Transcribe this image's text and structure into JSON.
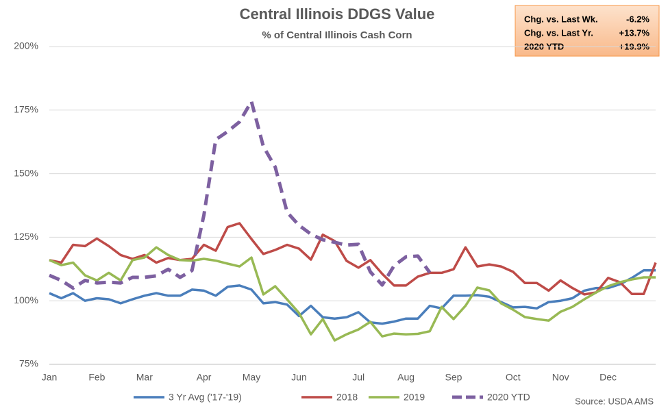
{
  "chart_data": {
    "type": "line",
    "title": "Central Illinois DDGS Value",
    "subtitle": "% of Central Illinois Cash Corn",
    "source": "Source: USDA AMS",
    "info_box": [
      [
        "Chg. vs. Last Wk.",
        "-6.2%"
      ],
      [
        "Chg. vs. Last Yr.",
        "+13.7%"
      ],
      [
        "2020 YTD",
        "+19.9%"
      ]
    ],
    "categories": [
      "Jan",
      null,
      null,
      null,
      "Feb",
      null,
      null,
      null,
      "Mar",
      null,
      null,
      null,
      null,
      "Apr",
      null,
      null,
      null,
      "May",
      null,
      null,
      null,
      "Jun",
      null,
      null,
      null,
      null,
      "Jul",
      null,
      null,
      null,
      "Aug",
      null,
      null,
      null,
      "Sep",
      null,
      null,
      null,
      null,
      "Oct",
      null,
      null,
      null,
      "Nov",
      null,
      null,
      null,
      "Dec",
      null,
      null,
      null,
      null
    ],
    "ylim": [
      75,
      200
    ],
    "yticks": [
      {
        "value": 75,
        "label": "75%"
      },
      {
        "value": 100,
        "label": "100%"
      },
      {
        "value": 125,
        "label": "125%"
      },
      {
        "value": 150,
        "label": "150%"
      },
      {
        "value": 175,
        "label": "175%"
      },
      {
        "value": 200,
        "label": "200%"
      }
    ],
    "grid": true,
    "legend": "bottom",
    "series": [
      {
        "name": "3 Yr Avg ('17-'19)",
        "color": "#4a7ebb",
        "dash": false,
        "values": [
          103,
          101,
          103,
          100,
          101,
          100.6,
          99,
          100.6,
          102,
          103,
          102,
          102,
          104.4,
          104,
          102,
          105.5,
          106,
          104.4,
          99,
          99.5,
          98.5,
          94,
          98,
          93.5,
          93,
          93.5,
          95.5,
          91.5,
          91,
          91.8,
          93,
          93,
          98,
          97,
          102,
          102,
          102.2,
          101.6,
          99.5,
          97.4,
          97.6,
          97,
          99.5,
          100,
          101,
          104,
          105,
          105,
          106.5,
          109,
          112,
          112
        ]
      },
      {
        "name": "2018",
        "color": "#be4b48",
        "dash": false,
        "values": [
          116,
          115,
          122,
          121.5,
          124.5,
          121.5,
          118,
          116.5,
          118,
          115,
          116.8,
          116,
          116.5,
          122,
          119.7,
          129,
          130.5,
          124.3,
          118.4,
          120,
          122,
          120.5,
          116.2,
          126,
          123.5,
          115.7,
          113,
          116,
          110.6,
          106,
          106,
          109.5,
          111,
          111,
          112.4,
          121,
          113.5,
          114.3,
          113.5,
          111.4,
          107,
          107,
          104,
          108,
          105,
          102.5,
          103.3,
          109,
          107.3,
          102.7,
          102.7,
          115
        ]
      },
      {
        "name": "2019",
        "color": "#98b954",
        "dash": false,
        "values": [
          116,
          114,
          115,
          110,
          108,
          111,
          108,
          116,
          117,
          121,
          118,
          116,
          115.8,
          116.5,
          115.8,
          114.6,
          113.5,
          117,
          102.5,
          105.7,
          100.5,
          95.2,
          86.8,
          92.8,
          84.4,
          86.8,
          88.7,
          91.7,
          86,
          87.1,
          86.8,
          87,
          88,
          97.6,
          92.8,
          98,
          105.2,
          104.1,
          99,
          96.5,
          93.6,
          92.8,
          92.2,
          95.7,
          97.6,
          100.6,
          103.3,
          105.7,
          107.3,
          108.4,
          109.2,
          109.2
        ]
      },
      {
        "name": "2020 YTD",
        "color": "#7d60a0",
        "dash": true,
        "values": [
          110,
          108,
          105,
          108,
          107,
          107.3,
          107,
          109.2,
          109.2,
          109.8,
          112.4,
          109.2,
          111.9,
          133.7,
          163.4,
          166.6,
          170.4,
          178.4,
          160.7,
          152.6,
          134.8,
          129.7,
          126.2,
          124,
          123,
          121.9,
          122.2,
          111.4,
          106.2,
          113.8,
          117.3,
          117.6,
          111.1,
          null,
          null,
          null,
          null,
          null,
          null,
          null,
          null,
          null,
          null,
          null,
          null,
          null,
          null,
          null,
          null,
          null,
          null,
          null
        ]
      }
    ]
  }
}
